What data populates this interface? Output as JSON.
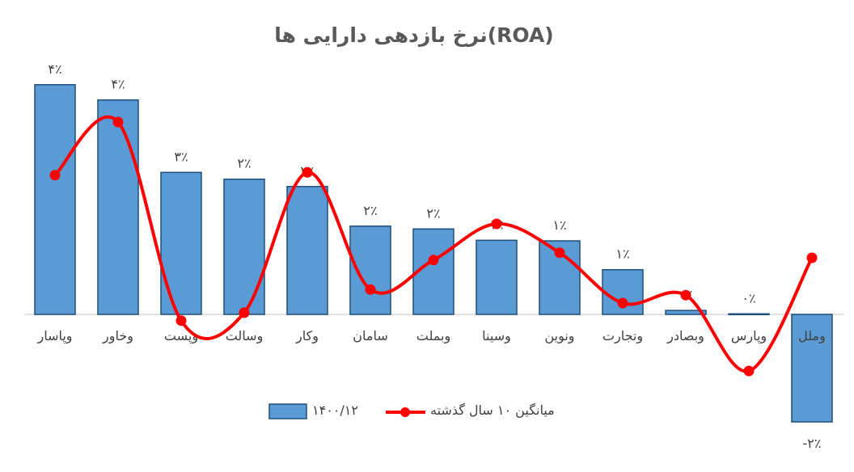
{
  "chart_data": {
    "type": "bar",
    "title": "نرخ بازدهی دارایی ها(ROA)",
    "categories": [
      "وپاسار",
      "وخاور",
      "وپست",
      "وسالت",
      "وکار",
      "سامان",
      "وبملت",
      "وسینا",
      "ونوین",
      "وتجارت",
      "وبصادر",
      "وپارس",
      "وملل"
    ],
    "series": [
      {
        "name": "۱۴۰۰/۱۲",
        "type": "bar",
        "color": "#5B9BD5",
        "border": "#1F4E79",
        "values": [
          4.06,
          3.79,
          2.51,
          2.39,
          2.26,
          1.56,
          1.51,
          1.31,
          1.3,
          0.79,
          0.07,
          0.01,
          -1.9
        ],
        "data_labels": [
          "۴٪",
          "۴٪",
          "۳٪",
          "۲٪",
          "۲٪",
          "۲٪",
          "۲٪",
          "۱٪",
          "۱٪",
          "۱٪",
          "۰٪",
          "۰٪",
          "-۲٪"
        ]
      },
      {
        "name": "میانگین ۱۰ سال گذشته",
        "type": "line",
        "color": "#FF0000",
        "values": [
          2.46,
          3.4,
          -0.11,
          0.03,
          2.51,
          0.44,
          0.96,
          1.6,
          1.09,
          0.2,
          0.34,
          -1.0,
          1.0
        ]
      }
    ],
    "ylim": [
      -2.5,
      4.5
    ],
    "grid": false,
    "legend_position": "bottom"
  }
}
